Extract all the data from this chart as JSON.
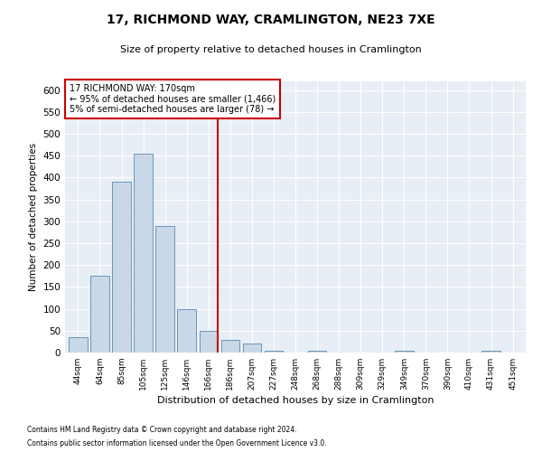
{
  "title": "17, RICHMOND WAY, CRAMLINGTON, NE23 7XE",
  "subtitle": "Size of property relative to detached houses in Cramlington",
  "xlabel": "Distribution of detached houses by size in Cramlington",
  "ylabel": "Number of detached properties",
  "footnote1": "Contains HM Land Registry data © Crown copyright and database right 2024.",
  "footnote2": "Contains public sector information licensed under the Open Government Licence v3.0.",
  "bar_labels": [
    "44sqm",
    "64sqm",
    "85sqm",
    "105sqm",
    "125sqm",
    "146sqm",
    "166sqm",
    "186sqm",
    "207sqm",
    "227sqm",
    "248sqm",
    "268sqm",
    "288sqm",
    "309sqm",
    "329sqm",
    "349sqm",
    "370sqm",
    "390sqm",
    "410sqm",
    "431sqm",
    "451sqm"
  ],
  "bar_values": [
    35,
    175,
    390,
    455,
    290,
    100,
    50,
    28,
    20,
    5,
    0,
    5,
    0,
    0,
    0,
    5,
    0,
    0,
    0,
    5,
    0
  ],
  "bar_color": "#c8d8e8",
  "bar_edge_color": "#5a8ab0",
  "bg_color": "#e8eef5",
  "annotation_text": "17 RICHMOND WAY: 170sqm\n← 95% of detached houses are smaller (1,466)\n5% of semi-detached houses are larger (78) →",
  "annotation_box_color": "#ffffff",
  "annotation_box_edge_color": "#cc0000",
  "red_line_index": 6,
  "ylim": [
    0,
    620
  ],
  "yticks": [
    0,
    50,
    100,
    150,
    200,
    250,
    300,
    350,
    400,
    450,
    500,
    550,
    600
  ]
}
